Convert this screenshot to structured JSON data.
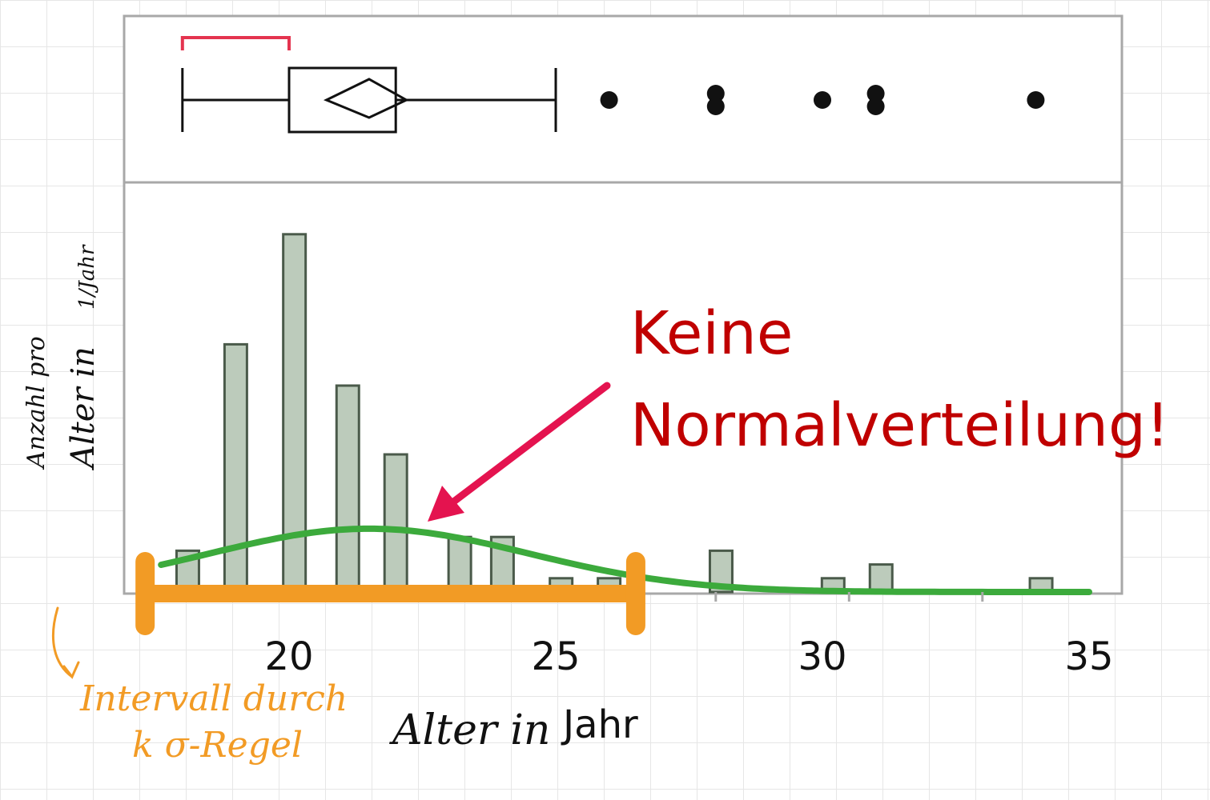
{
  "chart_data": {
    "type": "histogram",
    "title": "",
    "xlabel": "Alter in Jahr",
    "ylabel_line1": "Anzahl pro",
    "ylabel_line2": "Alter in",
    "ylabel_unit": "1/Jahr",
    "xlim": [
      17.6,
      35
    ],
    "x_ticks": [
      20,
      25,
      30,
      35
    ],
    "bars": [
      {
        "x": 18.1,
        "value": 3
      },
      {
        "x": 19.0,
        "value": 18
      },
      {
        "x": 20.1,
        "value": 26
      },
      {
        "x": 21.1,
        "value": 15
      },
      {
        "x": 22.0,
        "value": 10
      },
      {
        "x": 23.2,
        "value": 4
      },
      {
        "x": 24.0,
        "value": 4
      },
      {
        "x": 25.1,
        "value": 1
      },
      {
        "x": 26.0,
        "value": 1
      },
      {
        "x": 28.1,
        "value": 3
      },
      {
        "x": 30.2,
        "value": 1
      },
      {
        "x": 31.1,
        "value": 2
      },
      {
        "x": 34.1,
        "value": 1
      }
    ],
    "normal_curve": {
      "mean": 21.5,
      "sd": 3.0,
      "peak": 4.6
    },
    "boxplot": {
      "whisker_low": 18,
      "q1": 20,
      "median": 20,
      "q3": 22,
      "whisker_high": 25,
      "mean": 21.5,
      "mean_ci": [
        20.7,
        22.2
      ],
      "outliers": [
        26,
        28,
        28,
        30,
        31,
        31,
        34
      ],
      "shortest_half": [
        18,
        20
      ]
    },
    "sigma_interval": [
      17.3,
      26.5
    ],
    "colors": {
      "bar_fill": "#bccbbb",
      "bar_stroke": "#4a5a4a",
      "curve": "#3caa3c",
      "interval": "#f29b25",
      "arrow": "#e4134f",
      "callout": "#c00000",
      "bracket": "#e4344f"
    }
  },
  "annotations": {
    "callout_line1": "Keine",
    "callout_line2": "Normalverteilung!",
    "interval_line1": "Intervall durch",
    "interval_line2": "k σ-Regel",
    "xlabel_hand": "Alter in",
    "xlabel_printed": "Jahr"
  }
}
